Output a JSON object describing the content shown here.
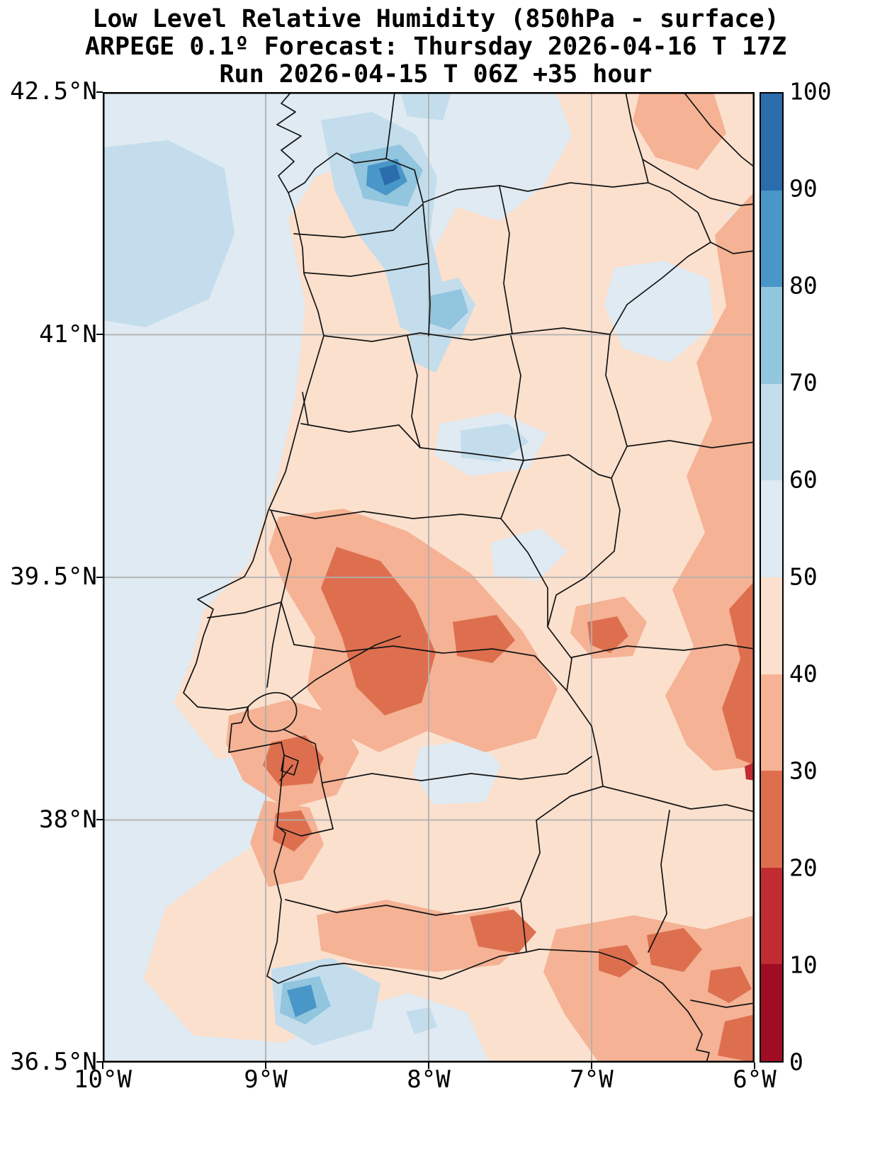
{
  "title": {
    "line1": "Low Level Relative Humidity (850hPa - surface)",
    "line2": "ARPEGE 0.1º Forecast: Thursday 2026-04-16 T 17Z",
    "line3": "Run 2026-04-15 T 06Z +35 hour"
  },
  "chart_data": {
    "type": "heatmap",
    "title": "Low Level Relative Humidity (850hPa - surface)",
    "subtitle": "ARPEGE 0.1º Forecast: Thursday 2026-04-16 T 17Z",
    "run_line": "Run 2026-04-15 T 06Z +35 hour",
    "model": "ARPEGE 0.1º",
    "forecast_valid": "Thursday 2026-04-16 T 17Z",
    "run": "2026-04-15 T 06Z",
    "lead_time": "+35 hour",
    "variable": "Low Level Relative Humidity (850hPa - surface)",
    "units": "%",
    "region": "Portugal and western Spain",
    "grid": true,
    "x_axis": {
      "label": "longitude",
      "ticks": [
        "10°W",
        "9°W",
        "8°W",
        "7°W",
        "6°W"
      ],
      "range_deg": [
        -10,
        -6
      ]
    },
    "y_axis": {
      "label": "latitude",
      "ticks": [
        "42.5°N",
        "41°N",
        "39.5°N",
        "38°N",
        "36.5°N"
      ],
      "range_deg": [
        36.5,
        42.5
      ]
    },
    "colorbar": {
      "position": "right",
      "levels": [
        0,
        10,
        20,
        30,
        40,
        50,
        60,
        70,
        80,
        90,
        100
      ],
      "tick_labels": [
        "0",
        "10",
        "20",
        "30",
        "40",
        "50",
        "60",
        "70",
        "80",
        "90",
        "100"
      ],
      "colors_low_to_high": [
        "#9e0d24",
        "#c02c31",
        "#dd6f4f",
        "#f5b294",
        "#fbe0ce",
        "#dfeaf2",
        "#c3ddec",
        "#92c5de",
        "#4996c8",
        "#2a6cac"
      ]
    },
    "notable_features": [
      "Ocean background relative humidity 50-60%",
      "Moist band 60-90% over NW Portugal / Galicia border (~8.2-8.6W, 41.5-42.1N) with core above 80%",
      "Moist patch 60-85% on the SW coast near Sagres / Costa Vicentina",
      "Dry band 20-30% along central Portugal (Ribatejo / Alto Alentejo) and near Setubal",
      "Dry areas 20-30% over eastern Algarve, western Andalucia and along 6W in Spain (38-40.5N)",
      "Most land in the 30-50% range"
    ]
  },
  "colors": {
    "figure_background": "#ffffff",
    "frame": "#000000",
    "gridlines": "#b0b0b0",
    "boundaries": "#141414",
    "ocean_base": "#dfeaf2"
  }
}
